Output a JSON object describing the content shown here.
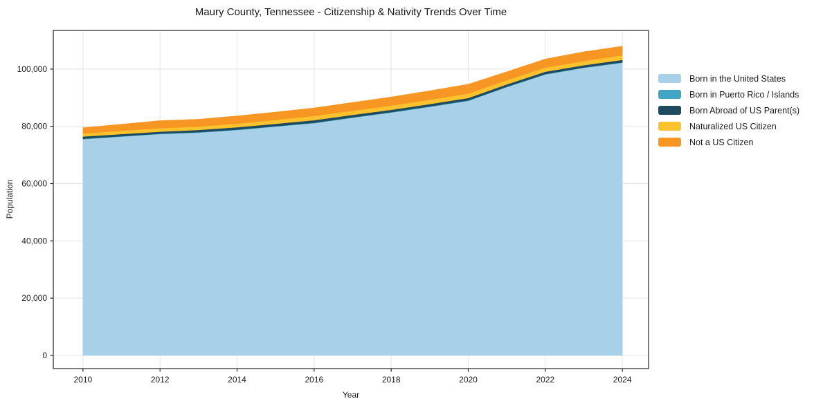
{
  "chart_data": {
    "type": "area",
    "stacked": true,
    "title": "Maury County, Tennessee - Citizenship & Nativity Trends Over Time",
    "xlabel": "Year",
    "ylabel": "Population",
    "x": [
      2010,
      2011,
      2012,
      2013,
      2014,
      2015,
      2016,
      2017,
      2018,
      2019,
      2020,
      2021,
      2022,
      2023,
      2024
    ],
    "x_ticks": [
      2010,
      2012,
      2014,
      2016,
      2018,
      2020,
      2022,
      2024
    ],
    "y_ticks": [
      0,
      20000,
      40000,
      60000,
      80000,
      100000
    ],
    "xlim": [
      2009.23,
      2024.68
    ],
    "ylim": [
      -4600,
      113500
    ],
    "grid": true,
    "legend_position": "right-outside",
    "series": [
      {
        "id": "born-us",
        "name": "Born in the United States",
        "color": "#a8d0e8",
        "values": [
          75500,
          76400,
          77300,
          77800,
          78700,
          79900,
          81100,
          83000,
          84800,
          86800,
          88900,
          93700,
          98100,
          100400,
          102200
        ]
      },
      {
        "id": "pr-islands",
        "name": "Born in Puerto Rico / Islands",
        "color": "#41a5c3",
        "values": [
          150,
          150,
          150,
          150,
          150,
          150,
          150,
          150,
          150,
          150,
          150,
          150,
          150,
          150,
          150
        ]
      },
      {
        "id": "born-abroad",
        "name": "Born Abroad of US Parent(s)",
        "color": "#1e4b5f",
        "values": [
          800,
          750,
          700,
          800,
          850,
          850,
          900,
          850,
          820,
          830,
          850,
          820,
          820,
          800,
          850
        ]
      },
      {
        "id": "naturalized",
        "name": "Naturalized US Citizen",
        "color": "#fcc22d",
        "values": [
          1100,
          1150,
          1200,
          1150,
          1250,
          1350,
          1500,
          1450,
          1450,
          1500,
          1550,
          1450,
          1450,
          1450,
          1600
        ]
      },
      {
        "id": "not-citizen",
        "name": "Not a US Citizen",
        "color": "#f79623",
        "values": [
          2000,
          2300,
          2650,
          2600,
          2700,
          2750,
          2800,
          2900,
          3050,
          3150,
          3250,
          2950,
          3000,
          3250,
          3200
        ]
      }
    ]
  },
  "colors": {
    "grid": "#e5e5e5",
    "frame": "#262626",
    "text": "#1a1a1a",
    "figure_background": "#ffffff"
  }
}
